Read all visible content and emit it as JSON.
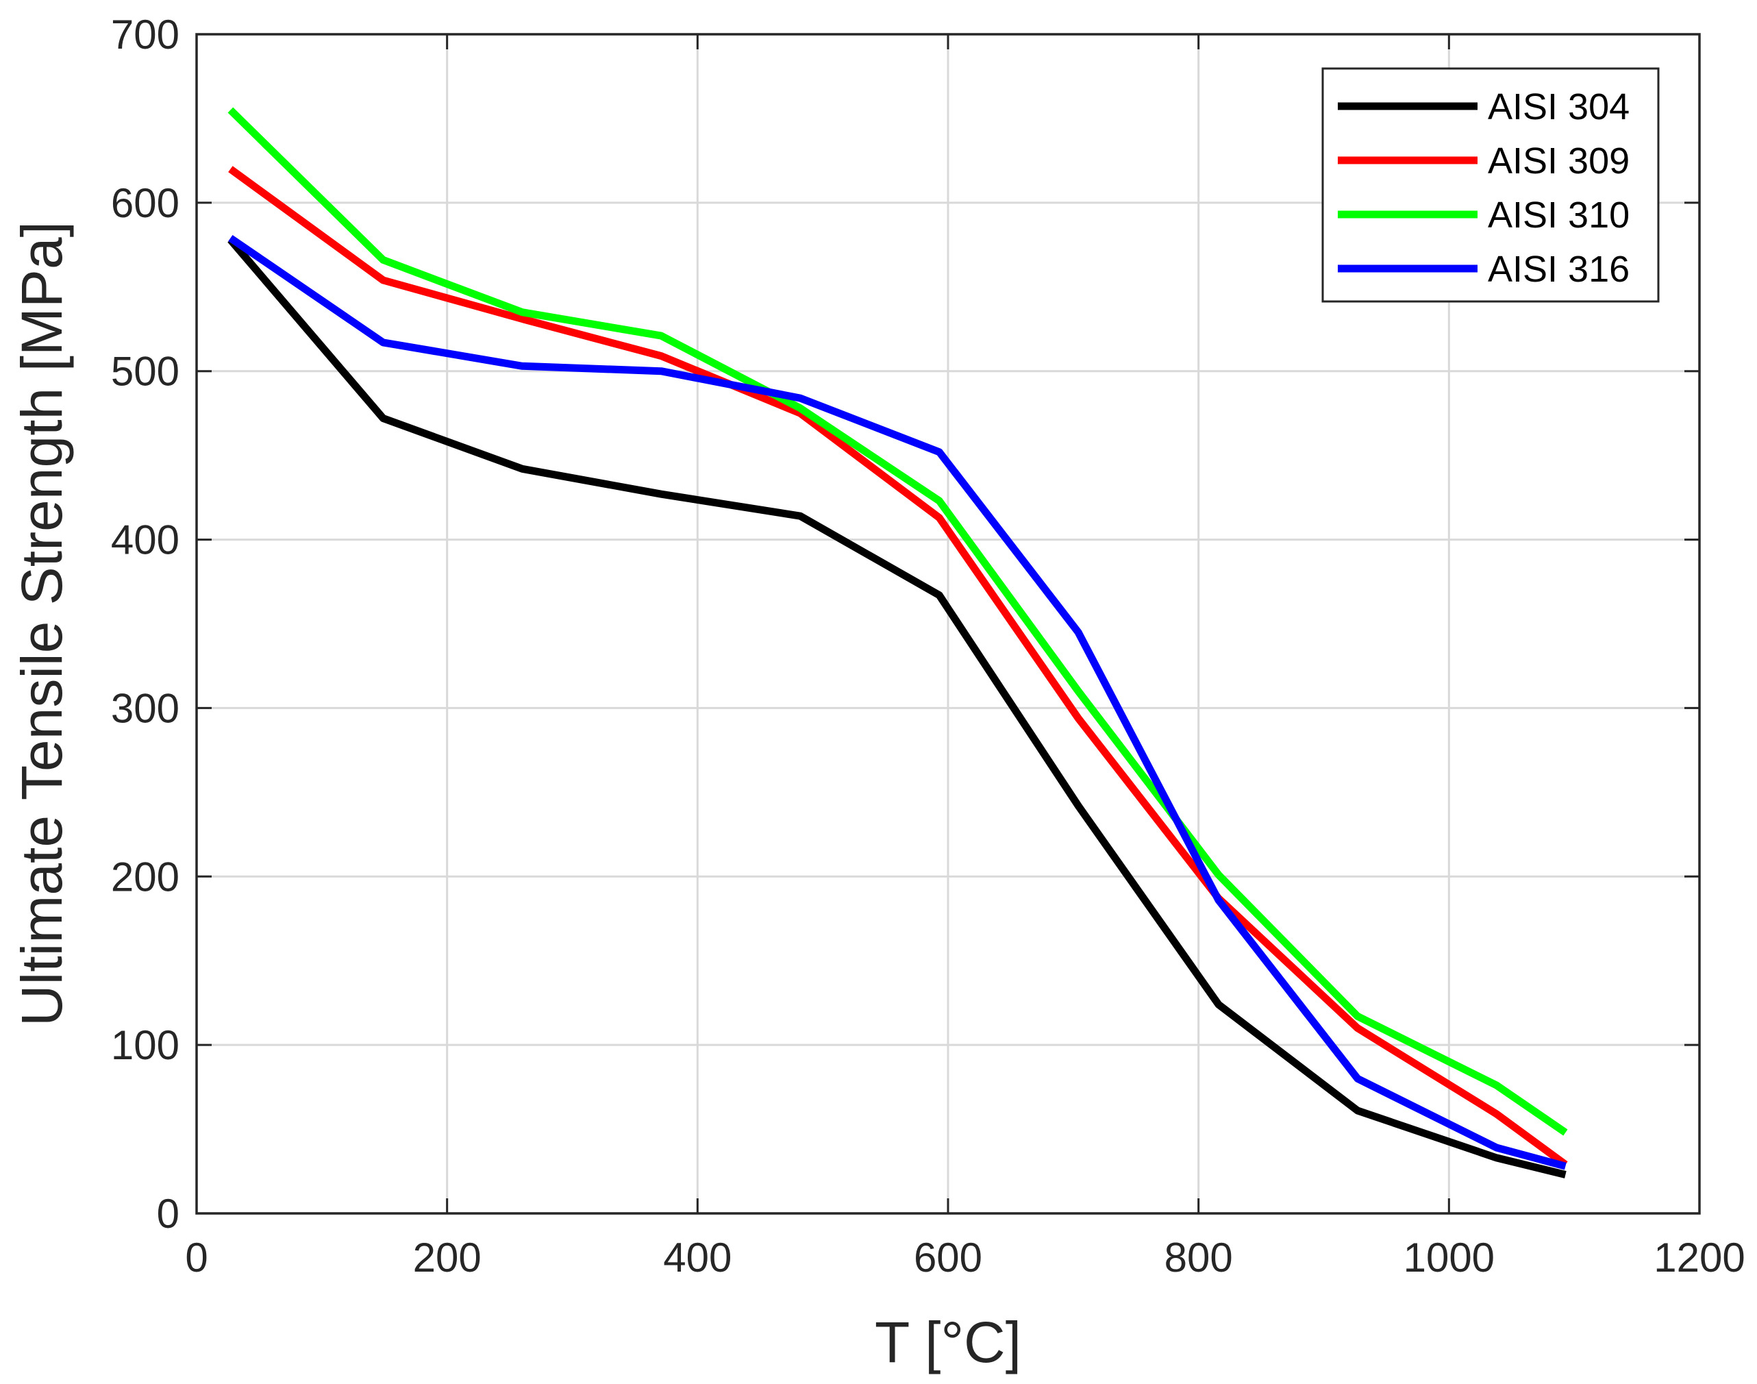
{
  "chart_data": {
    "type": "line",
    "title": "",
    "xlabel": "T [°C]",
    "ylabel": "Ultimate Tensile Strength [MPa]",
    "xlim": [
      0,
      1200
    ],
    "ylim": [
      0,
      700
    ],
    "xticks": [
      0,
      200,
      400,
      600,
      800,
      1000,
      1200
    ],
    "yticks": [
      0,
      100,
      200,
      300,
      400,
      500,
      600,
      700
    ],
    "grid": true,
    "legend_position": "top-right",
    "x": [
      27,
      149,
      260,
      371,
      482,
      593,
      704,
      816,
      927,
      1038,
      1093
    ],
    "series": [
      {
        "name": "AISI 304",
        "color": "#000000",
        "values": [
          578,
          472,
          442,
          427,
          414,
          367,
          242,
          124,
          61,
          33,
          23
        ]
      },
      {
        "name": "AISI 309",
        "color": "#ff0000",
        "values": [
          620,
          554,
          531,
          509,
          475,
          413,
          294,
          187,
          110,
          59,
          29
        ]
      },
      {
        "name": "AISI 310",
        "color": "#00ff00",
        "values": [
          655,
          566,
          535,
          521,
          478,
          423,
          310,
          201,
          117,
          76,
          48
        ]
      },
      {
        "name": "AISI 316",
        "color": "#0000ff",
        "values": [
          579,
          517,
          503,
          500,
          484,
          452,
          345,
          186,
          80,
          39,
          28
        ]
      }
    ]
  }
}
